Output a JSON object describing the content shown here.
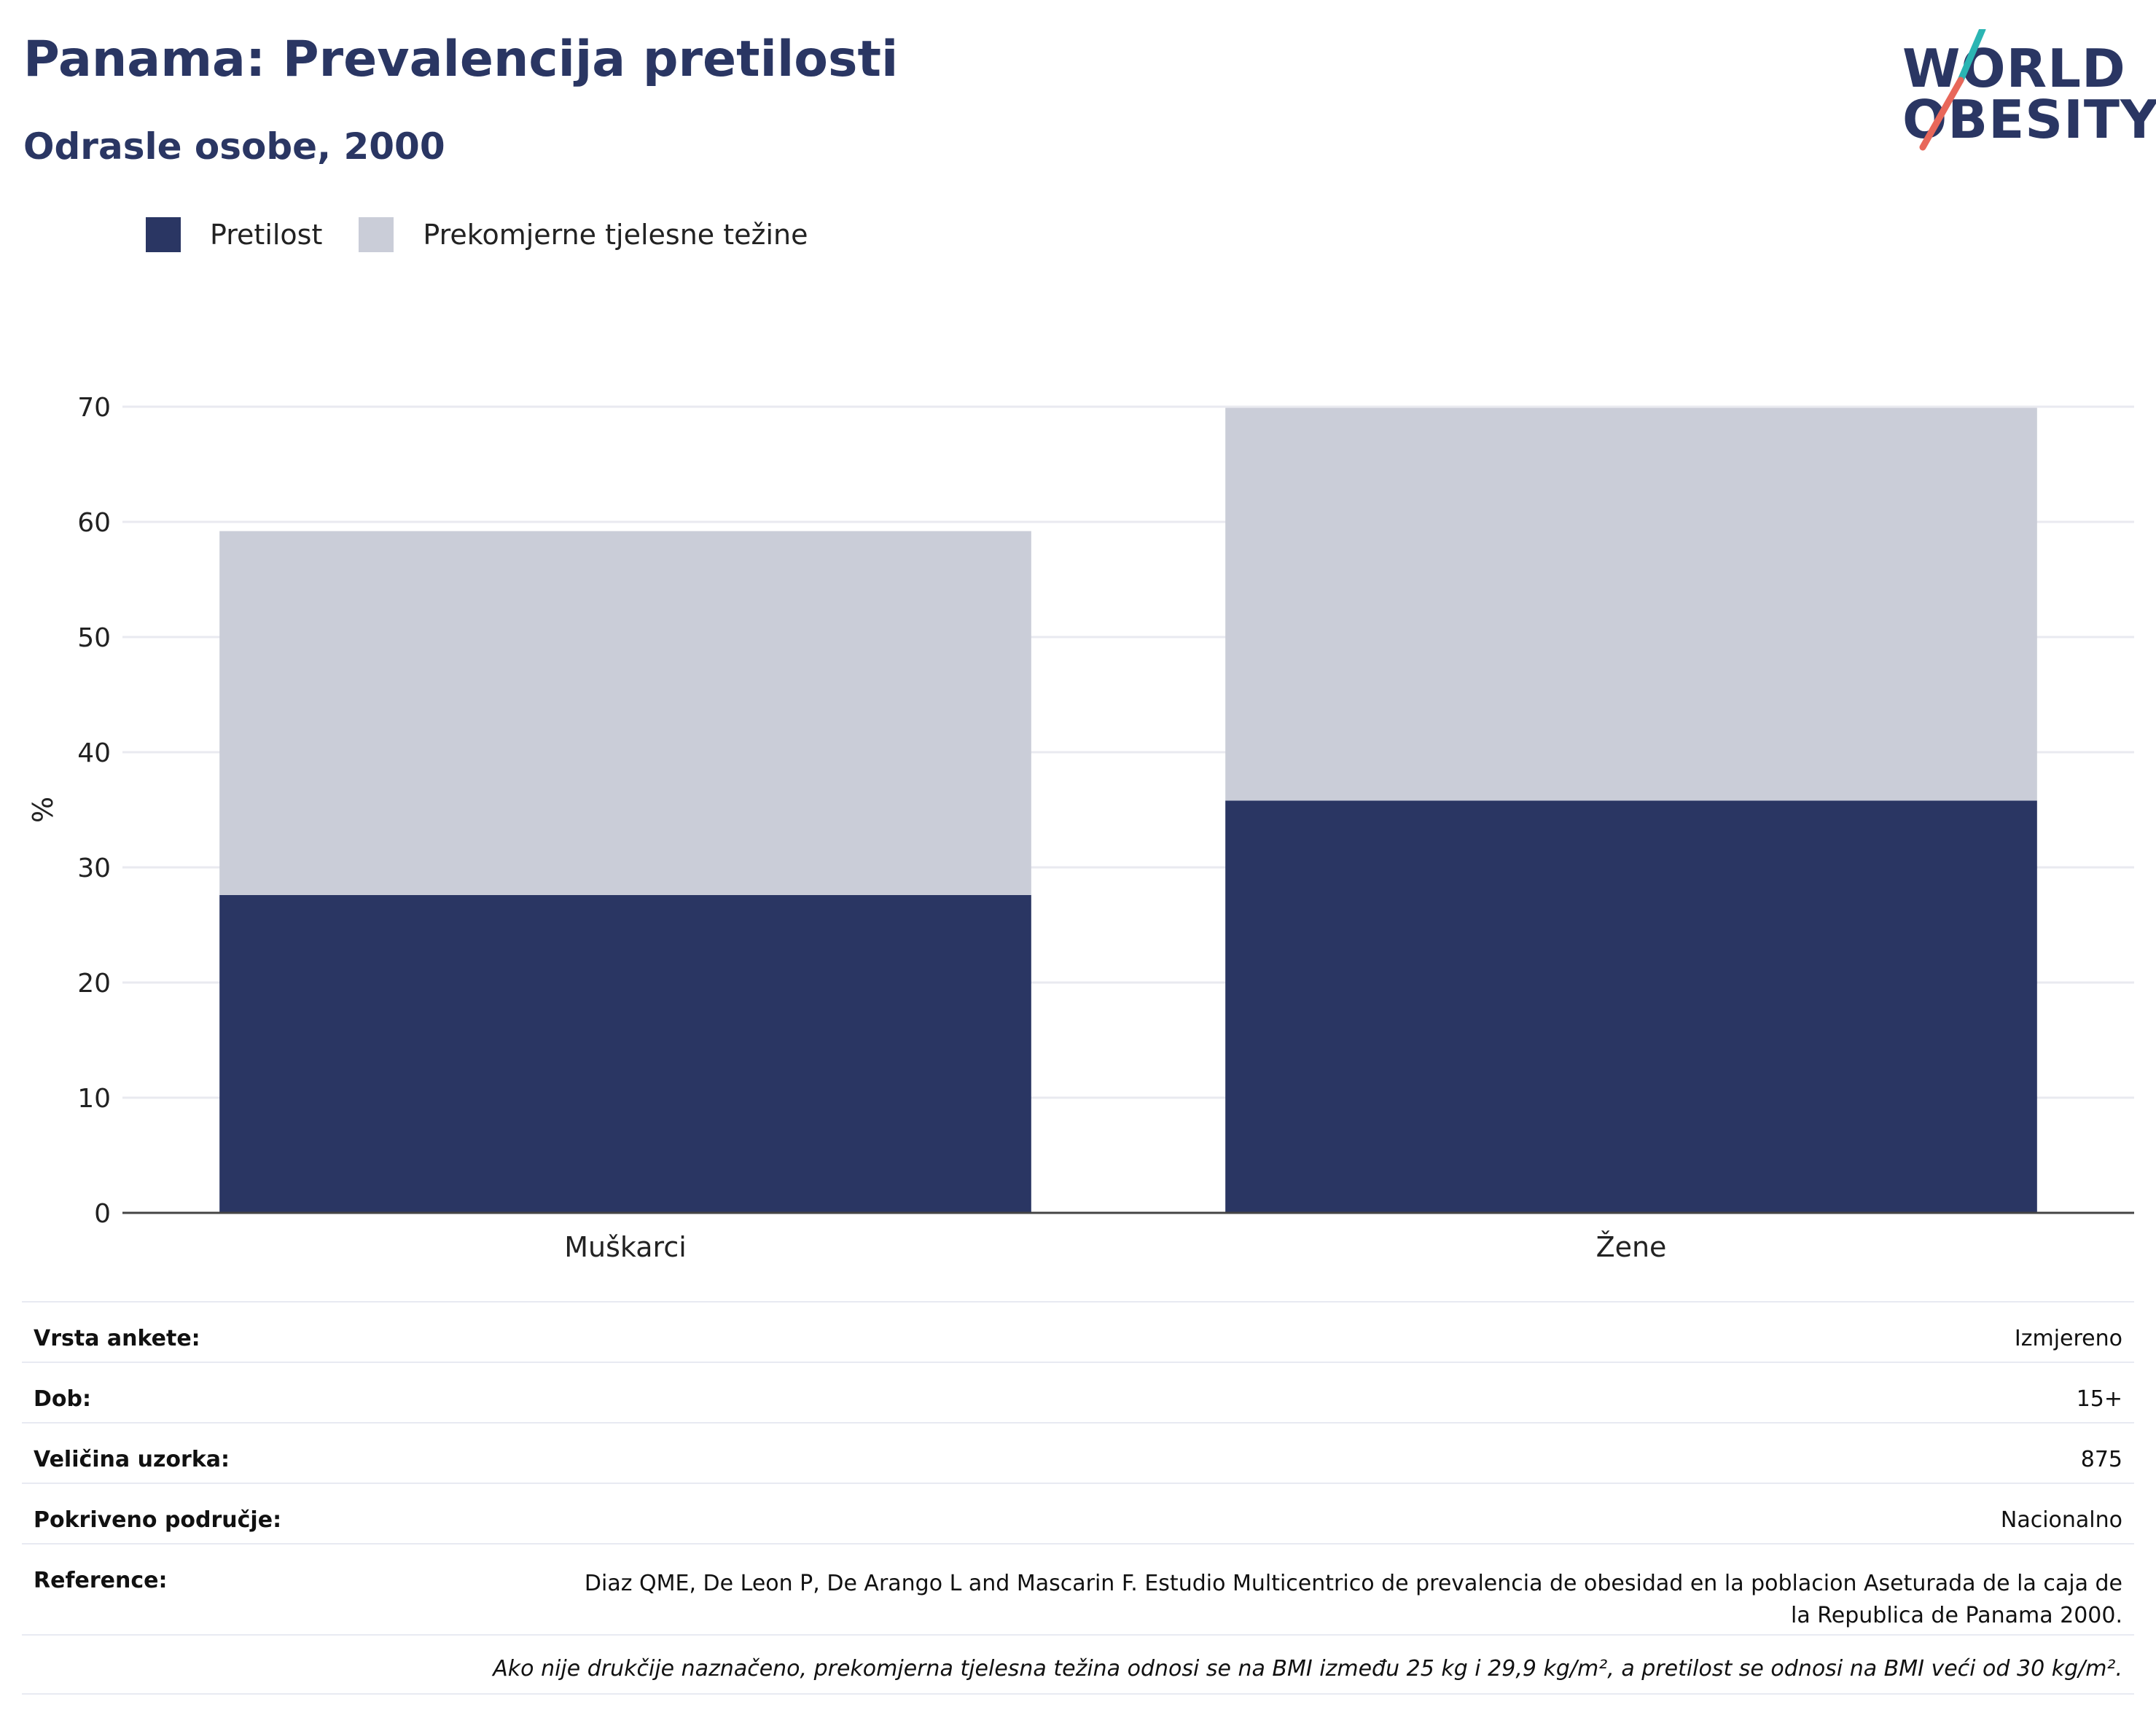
{
  "header": {
    "title": "Panama: Prevalencija pretilosti",
    "subtitle": "Odrasle osobe, 2000"
  },
  "logo": {
    "line1": "WORLD",
    "line2": "OBESITY",
    "accent_teal": "#2bb5b3",
    "accent_red": "#e8675a"
  },
  "legend": [
    {
      "label": "Pretilost",
      "color": "#2a3663"
    },
    {
      "label": "Prekomjerne tjelesne težine",
      "color": "#cacdd8"
    }
  ],
  "chart_data": {
    "type": "bar",
    "stacked": true,
    "categories": [
      "Muškarci",
      "Žene"
    ],
    "series": [
      {
        "name": "Pretilost",
        "color": "#2a3663",
        "values": [
          27.6,
          35.8
        ]
      },
      {
        "name": "Prekomjerne tjelesne težine",
        "color": "#cacdd8",
        "values": [
          31.6,
          34.1
        ]
      }
    ],
    "ylabel": "%",
    "ylim": [
      0,
      70
    ],
    "yticks": [
      0,
      10,
      20,
      30,
      40,
      50,
      60,
      70
    ],
    "grid": true
  },
  "meta": {
    "survey_type": {
      "label": "Vrsta ankete:",
      "value": "Izmjereno"
    },
    "age": {
      "label": "Dob:",
      "value": "15+"
    },
    "sample_size": {
      "label": "Veličina uzorka:",
      "value": "875"
    },
    "coverage": {
      "label": "Pokriveno područje:",
      "value": "Nacionalno"
    },
    "references": {
      "label": "Reference:",
      "value": "Diaz QME, De Leon P, De Arango L and Mascarin F. Estudio Multicentrico de prevalencia de obesidad en la poblacion Aseturada de la caja de la Republica de Panama 2000."
    },
    "note": "Ako nije drukčije naznačeno, prekomjerna tjelesna težina odnosi se na BMI između 25 kg i 29,9 kg/m², a pretilost se odnosi na BMI veći od 30 kg/m²."
  }
}
